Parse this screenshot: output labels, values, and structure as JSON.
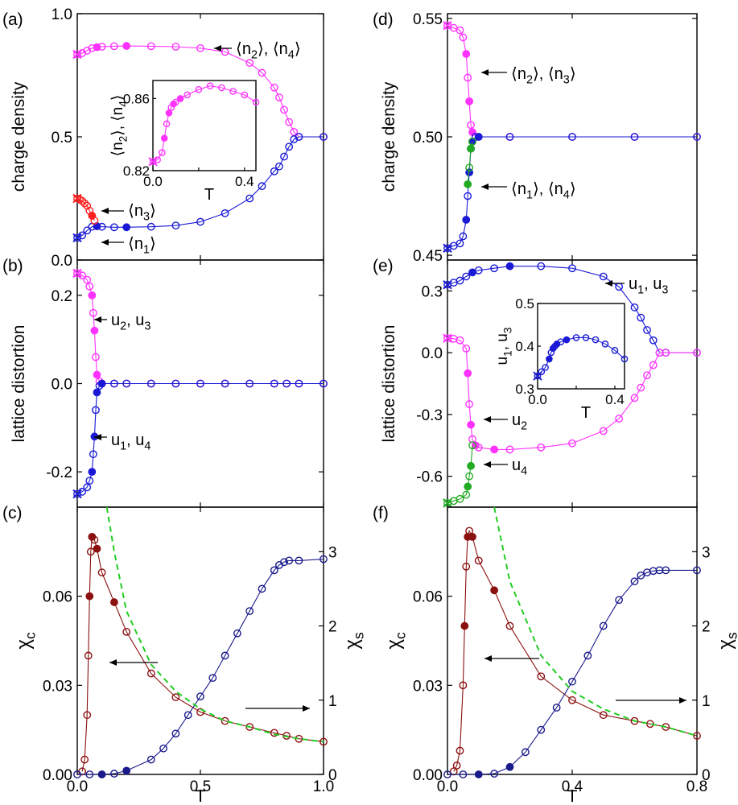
{
  "colors": {
    "magenta": "#ff33ff",
    "blue": "#1a1ad6",
    "red": "#ff2020",
    "green": "#22aa22",
    "darkred": "#8b1010",
    "navy": "#1a1a8c",
    "dashed_green": "#22cc22"
  },
  "chart_data": [
    {
      "id": "a",
      "panel_label": "(a)",
      "type": "line",
      "ylabel": "charge density",
      "xlim": [
        0,
        1
      ],
      "ylim": [
        0,
        1
      ],
      "yticks": [
        0,
        0.5,
        1
      ],
      "ytick_labels": [
        "0.0",
        "0.5",
        "1.0"
      ],
      "series": [
        {
          "name": "⟨n2⟩, ⟨n4⟩",
          "color": "magenta",
          "x": [
            0.0,
            0.02,
            0.04,
            0.06,
            0.08,
            0.1,
            0.15,
            0.2,
            0.3,
            0.4,
            0.5,
            0.6,
            0.7,
            0.75,
            0.8,
            0.82,
            0.84,
            0.86,
            0.88,
            0.9,
            1.0
          ],
          "y": [
            0.835,
            0.84,
            0.85,
            0.86,
            0.864,
            0.866,
            0.868,
            0.869,
            0.868,
            0.866,
            0.86,
            0.845,
            0.8,
            0.76,
            0.7,
            0.66,
            0.61,
            0.56,
            0.52,
            0.5,
            0.5
          ]
        },
        {
          "name": "⟨n1⟩",
          "color": "blue",
          "x": [
            0.0,
            0.02,
            0.04,
            0.06,
            0.08,
            0.1,
            0.15,
            0.2,
            0.3,
            0.4,
            0.5,
            0.6,
            0.7,
            0.75,
            0.8,
            0.82,
            0.84,
            0.86,
            0.88,
            0.9,
            1.0
          ],
          "y": [
            0.09,
            0.1,
            0.12,
            0.135,
            0.137,
            0.135,
            0.133,
            0.133,
            0.135,
            0.14,
            0.155,
            0.19,
            0.25,
            0.3,
            0.36,
            0.38,
            0.42,
            0.46,
            0.49,
            0.5,
            0.5
          ]
        },
        {
          "name": "⟨n3⟩",
          "color": "red",
          "x": [
            0.0,
            0.01,
            0.02,
            0.03,
            0.04,
            0.05,
            0.06,
            0.07
          ],
          "y": [
            0.25,
            0.245,
            0.24,
            0.23,
            0.22,
            0.2,
            0.18,
            0.16
          ]
        }
      ],
      "annotations": [
        {
          "text": "⟨n2⟩, ⟨n4⟩",
          "target": [
            0.55,
            0.855
          ]
        },
        {
          "text": "⟨n3⟩",
          "target": [
            0.09,
            0.2
          ]
        },
        {
          "text": "⟨n1⟩",
          "target": [
            0.09,
            0.07
          ]
        }
      ],
      "inset": {
        "ylabel": "⟨n2⟩, ⟨n4⟩",
        "xlabel": "T",
        "xlim": [
          0,
          0.45
        ],
        "ylim": [
          0.82,
          0.87
        ],
        "xticks": [
          0,
          0.2,
          0.4
        ],
        "xtick_labels": [
          "0.0",
          "",
          "0.4"
        ],
        "yticks": [
          0.82,
          0.86
        ],
        "ytick_labels": [
          "0.82",
          "0.86"
        ],
        "x": [
          0.0,
          0.02,
          0.04,
          0.05,
          0.06,
          0.07,
          0.08,
          0.09,
          0.1,
          0.12,
          0.15,
          0.2,
          0.25,
          0.3,
          0.35,
          0.4,
          0.45
        ],
        "y": [
          0.825,
          0.826,
          0.83,
          0.838,
          0.846,
          0.852,
          0.855,
          0.857,
          0.858,
          0.86,
          0.862,
          0.865,
          0.867,
          0.866,
          0.864,
          0.862,
          0.858
        ]
      }
    },
    {
      "id": "b",
      "panel_label": "(b)",
      "type": "line",
      "ylabel": "lattice distortion",
      "xlim": [
        0,
        1
      ],
      "ylim": [
        -0.28,
        0.28
      ],
      "yticks": [
        -0.2,
        0,
        0.2
      ],
      "ytick_labels": [
        "-0.2",
        "0.0",
        "0.2"
      ],
      "series": [
        {
          "name": "u2, u3",
          "color": "magenta",
          "x": [
            0.0,
            0.02,
            0.04,
            0.05,
            0.06,
            0.065,
            0.07,
            0.075,
            0.08,
            0.09,
            0.1,
            0.15,
            0.2,
            0.3,
            0.4,
            0.5,
            0.6,
            0.7,
            0.8,
            0.85,
            0.9,
            1.0
          ],
          "y": [
            0.25,
            0.245,
            0.235,
            0.22,
            0.2,
            0.16,
            0.12,
            0.06,
            0.02,
            0.005,
            0.0,
            0.0,
            0.0,
            0.0,
            0.0,
            0.0,
            0.0,
            0.0,
            0.0,
            0.0,
            0.0,
            0.0
          ]
        },
        {
          "name": "u1, u4",
          "color": "blue",
          "x": [
            0.0,
            0.02,
            0.04,
            0.05,
            0.06,
            0.065,
            0.07,
            0.075,
            0.08,
            0.09,
            0.1,
            0.15,
            0.2,
            0.3,
            0.4,
            0.5,
            0.6,
            0.7,
            0.8,
            0.85,
            0.9,
            1.0
          ],
          "y": [
            -0.25,
            -0.245,
            -0.235,
            -0.22,
            -0.2,
            -0.16,
            -0.12,
            -0.06,
            -0.02,
            -0.005,
            0.0,
            0.0,
            0.0,
            0.0,
            0.0,
            0.0,
            0.0,
            0.0,
            0.0,
            0.0,
            0.0,
            0.0
          ]
        }
      ],
      "annotations": [
        {
          "text": "u2, u3",
          "target": [
            0.07,
            0.155
          ]
        },
        {
          "text": "u1, u4",
          "target": [
            0.07,
            -0.12
          ]
        }
      ]
    },
    {
      "id": "c",
      "panel_label": "(c)",
      "type": "line",
      "ylabel": "χc",
      "ylabel_right": "χs",
      "xlabel": "T",
      "xlim": [
        0,
        1
      ],
      "ylim": [
        0,
        0.09
      ],
      "ylim_right": [
        0,
        3.6
      ],
      "xticks": [
        0,
        0.5,
        1
      ],
      "xtick_labels": [
        "0.0",
        "0.5",
        "1.0"
      ],
      "yticks": [
        0,
        0.03,
        0.06
      ],
      "ytick_labels": [
        "0.00",
        "0.03",
        "0.06"
      ],
      "yticks_right": [
        0,
        1,
        2,
        3
      ],
      "ytick_labels_right": [
        "0",
        "1",
        "2",
        "3"
      ],
      "series": [
        {
          "name": "χc",
          "color": "darkred",
          "axis": "left",
          "x": [
            0.02,
            0.03,
            0.04,
            0.045,
            0.05,
            0.055,
            0.06,
            0.07,
            0.08,
            0.1,
            0.15,
            0.2,
            0.3,
            0.4,
            0.5,
            0.6,
            0.7,
            0.8,
            0.85,
            0.9,
            1.0
          ],
          "y": [
            0.001,
            0.005,
            0.02,
            0.04,
            0.06,
            0.075,
            0.08,
            0.079,
            0.076,
            0.068,
            0.058,
            0.048,
            0.034,
            0.026,
            0.021,
            0.018,
            0.016,
            0.014,
            0.013,
            0.012,
            0.011
          ]
        },
        {
          "name": "χs",
          "color": "navy",
          "axis": "right",
          "x": [
            0.0,
            0.05,
            0.1,
            0.15,
            0.2,
            0.3,
            0.35,
            0.4,
            0.45,
            0.5,
            0.55,
            0.6,
            0.65,
            0.7,
            0.75,
            0.8,
            0.82,
            0.84,
            0.86,
            0.9,
            1.0
          ],
          "y": [
            0.0,
            0.0,
            0.0,
            0.01,
            0.05,
            0.2,
            0.35,
            0.55,
            0.8,
            1.05,
            1.3,
            1.6,
            1.9,
            2.2,
            2.5,
            2.75,
            2.82,
            2.86,
            2.88,
            2.88,
            2.9
          ]
        },
        {
          "name": "fit",
          "color": "dashed_green",
          "axis": "left",
          "dashed": true,
          "x": [
            0.12,
            0.15,
            0.2,
            0.3,
            0.4,
            0.5,
            0.6,
            0.7,
            0.8,
            0.9,
            1.0
          ],
          "y": [
            0.09,
            0.075,
            0.055,
            0.037,
            0.028,
            0.022,
            0.018,
            0.016,
            0.0135,
            0.012,
            0.011
          ]
        }
      ],
      "annotations": [
        {
          "text": "left-arrow",
          "at": [
            0.35,
            0.0115
          ]
        },
        {
          "text": "right-arrow",
          "at": [
            0.7,
            0.0215
          ]
        }
      ]
    },
    {
      "id": "d",
      "panel_label": "(d)",
      "type": "line",
      "ylabel": "charge density",
      "xlim": [
        0,
        0.8
      ],
      "ylim": [
        0.448,
        0.552
      ],
      "yticks": [
        0.45,
        0.5,
        0.55
      ],
      "ytick_labels": [
        "0.45",
        "0.50",
        "0.55"
      ],
      "series": [
        {
          "name": "⟨n2⟩, ⟨n3⟩",
          "color": "magenta",
          "x": [
            0.0,
            0.02,
            0.04,
            0.05,
            0.06,
            0.065,
            0.07,
            0.075,
            0.08,
            0.09,
            0.1,
            0.2,
            0.4,
            0.6,
            0.8
          ],
          "y": [
            0.547,
            0.546,
            0.545,
            0.542,
            0.535,
            0.525,
            0.515,
            0.505,
            0.502,
            0.5,
            0.5,
            0.5,
            0.5,
            0.5,
            0.5
          ]
        },
        {
          "name": "⟨n1⟩",
          "color": "blue",
          "x": [
            0.0,
            0.02,
            0.04,
            0.05,
            0.06,
            0.065,
            0.07,
            0.075,
            0.08,
            0.09,
            0.1,
            0.2,
            0.4,
            0.6,
            0.8
          ],
          "y": [
            0.453,
            0.454,
            0.455,
            0.458,
            0.465,
            0.475,
            0.485,
            0.495,
            0.498,
            0.5,
            0.5,
            0.5,
            0.5,
            0.5,
            0.5
          ]
        },
        {
          "name": "⟨n4⟩",
          "color": "green",
          "x": [
            0.065,
            0.07,
            0.075,
            0.08
          ],
          "y": [
            0.48,
            0.487,
            0.495,
            0.498
          ]
        }
      ],
      "annotations": [
        {
          "text": "⟨n2⟩, ⟨n3⟩",
          "target": [
            0.075,
            0.527
          ]
        },
        {
          "text": "⟨n1⟩, ⟨n4⟩",
          "target": [
            0.075,
            0.48
          ]
        }
      ]
    },
    {
      "id": "e",
      "panel_label": "(e)",
      "type": "line",
      "ylabel": "lattice distortion",
      "xlim": [
        0,
        0.8
      ],
      "ylim": [
        -0.75,
        0.45
      ],
      "yticks": [
        -0.6,
        -0.3,
        0,
        0.3
      ],
      "ytick_labels": [
        "-0.6",
        "-0.3",
        "0.0",
        "0.3"
      ],
      "series": [
        {
          "name": "u1, u3",
          "color": "blue",
          "x": [
            0.0,
            0.02,
            0.04,
            0.06,
            0.08,
            0.1,
            0.15,
            0.2,
            0.3,
            0.4,
            0.5,
            0.55,
            0.6,
            0.62,
            0.64,
            0.66,
            0.68,
            0.7,
            0.8
          ],
          "y": [
            0.33,
            0.34,
            0.35,
            0.37,
            0.39,
            0.4,
            0.41,
            0.42,
            0.42,
            0.41,
            0.37,
            0.32,
            0.22,
            0.17,
            0.11,
            0.06,
            0.0,
            0.0,
            0.0
          ]
        },
        {
          "name": "u2",
          "color": "magenta",
          "x": [
            0.0,
            0.02,
            0.04,
            0.06,
            0.065,
            0.07,
            0.075,
            0.08,
            0.09,
            0.1,
            0.15,
            0.2,
            0.3,
            0.4,
            0.5,
            0.55,
            0.6,
            0.62,
            0.64,
            0.66,
            0.68,
            0.7,
            0.8
          ],
          "y": [
            0.07,
            0.068,
            0.06,
            0.02,
            -0.1,
            -0.25,
            -0.35,
            -0.42,
            -0.45,
            -0.46,
            -0.47,
            -0.47,
            -0.46,
            -0.44,
            -0.38,
            -0.32,
            -0.22,
            -0.17,
            -0.11,
            -0.06,
            0.0,
            0.0,
            0.0
          ]
        },
        {
          "name": "u4",
          "color": "green",
          "x": [
            0.0,
            0.02,
            0.04,
            0.06,
            0.065,
            0.07,
            0.075,
            0.08
          ],
          "y": [
            -0.73,
            -0.72,
            -0.71,
            -0.69,
            -0.65,
            -0.6,
            -0.55,
            -0.45
          ]
        }
      ],
      "annotations": [
        {
          "text": "u1, u3",
          "target": [
            0.5,
            0.37
          ]
        },
        {
          "text": "u2",
          "target": [
            0.08,
            -0.32
          ]
        },
        {
          "text": "u4",
          "target": [
            0.08,
            -0.57
          ]
        }
      ],
      "inset": {
        "ylabel": "u1, u3",
        "xlabel": "T",
        "xlim": [
          0,
          0.45
        ],
        "ylim": [
          0.3,
          0.5
        ],
        "xticks": [
          0,
          0.2,
          0.4
        ],
        "xtick_labels": [
          "0.0",
          "",
          "0.4"
        ],
        "yticks": [
          0.3,
          0.4,
          0.5
        ],
        "ytick_labels": [
          "0.3",
          "0.4",
          "0.5"
        ],
        "x": [
          0.0,
          0.02,
          0.04,
          0.06,
          0.07,
          0.08,
          0.09,
          0.1,
          0.12,
          0.15,
          0.2,
          0.25,
          0.3,
          0.35,
          0.4,
          0.45
        ],
        "y": [
          0.33,
          0.34,
          0.35,
          0.37,
          0.385,
          0.395,
          0.4,
          0.405,
          0.41,
          0.415,
          0.42,
          0.42,
          0.415,
          0.405,
          0.39,
          0.37
        ]
      }
    },
    {
      "id": "f",
      "panel_label": "(f)",
      "type": "line",
      "ylabel": "χc",
      "ylabel_right": "χs",
      "xlabel": "T",
      "xlim": [
        0,
        0.8
      ],
      "ylim": [
        0,
        0.09
      ],
      "ylim_right": [
        0,
        3.6
      ],
      "xticks": [
        0,
        0.4,
        0.8
      ],
      "xtick_labels": [
        "0.0",
        "0.4",
        "0.8"
      ],
      "yticks": [
        0,
        0.03,
        0.06
      ],
      "ytick_labels": [
        "0.00",
        "0.03",
        "0.06"
      ],
      "yticks_right": [
        0,
        1,
        2,
        3
      ],
      "ytick_labels_right": [
        "0",
        "1",
        "2",
        "3"
      ],
      "series": [
        {
          "name": "χc",
          "color": "darkred",
          "axis": "left",
          "x": [
            0.02,
            0.03,
            0.04,
            0.05,
            0.055,
            0.06,
            0.065,
            0.07,
            0.08,
            0.1,
            0.15,
            0.2,
            0.3,
            0.4,
            0.5,
            0.6,
            0.65,
            0.7,
            0.8
          ],
          "y": [
            0.001,
            0.003,
            0.008,
            0.03,
            0.05,
            0.07,
            0.08,
            0.082,
            0.08,
            0.072,
            0.062,
            0.05,
            0.033,
            0.025,
            0.02,
            0.018,
            0.017,
            0.016,
            0.013
          ]
        },
        {
          "name": "χs",
          "color": "navy",
          "axis": "right",
          "x": [
            0.0,
            0.05,
            0.1,
            0.15,
            0.2,
            0.25,
            0.3,
            0.35,
            0.4,
            0.45,
            0.5,
            0.55,
            0.6,
            0.62,
            0.64,
            0.66,
            0.68,
            0.7,
            0.8
          ],
          "y": [
            0.0,
            0.0,
            0.0,
            0.01,
            0.1,
            0.3,
            0.6,
            0.9,
            1.25,
            1.6,
            2.0,
            2.35,
            2.6,
            2.68,
            2.72,
            2.74,
            2.75,
            2.75,
            2.75
          ]
        },
        {
          "name": "fit",
          "color": "dashed_green",
          "axis": "left",
          "dashed": true,
          "x": [
            0.15,
            0.2,
            0.3,
            0.4,
            0.5,
            0.6,
            0.7,
            0.8
          ],
          "y": [
            0.09,
            0.065,
            0.04,
            0.028,
            0.022,
            0.018,
            0.016,
            0.013
          ]
        }
      ],
      "annotations": [
        {
          "text": "left-arrow",
          "at": [
            0.25,
            0.0115
          ]
        },
        {
          "text": "right-arrow",
          "at": [
            0.6,
            0.0215
          ]
        }
      ]
    }
  ]
}
